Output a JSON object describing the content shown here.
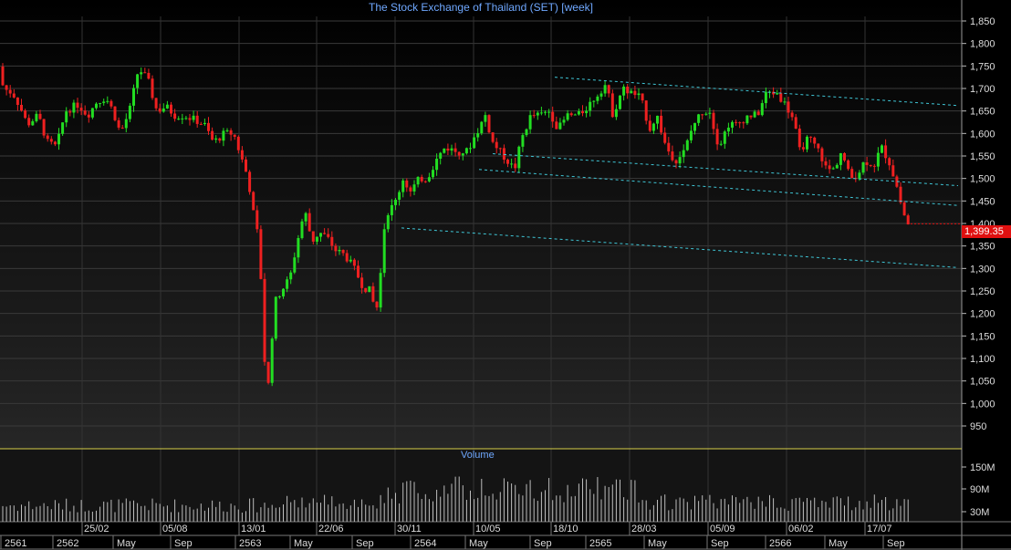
{
  "chart_data": {
    "type": "candlestick",
    "title": "The Stock Exchange of Thailand (SET) [week]",
    "volume_label": "Volume",
    "last_price_label": "1,399.35",
    "ylim": [
      920,
      1870
    ],
    "y_ticks": [
      "950",
      "1,000",
      "1,050",
      "1,100",
      "1,150",
      "1,200",
      "1,250",
      "1,300",
      "1,350",
      "1,400",
      "1,450",
      "1,500",
      "1,550",
      "1,600",
      "1,650",
      "1,700",
      "1,750",
      "1,800",
      "1,850"
    ],
    "volume_ticks": [
      "150M",
      "90M",
      "30M"
    ],
    "date_ticks": [
      "25/02",
      "05/08",
      "13/01",
      "22/06",
      "30/11",
      "10/05",
      "18/10",
      "28/03",
      "05/09",
      "06/02",
      "17/07"
    ],
    "period_ticks": [
      "2561",
      "2562",
      "May",
      "Sep",
      "2563",
      "May",
      "Sep",
      "2564",
      "May",
      "Sep",
      "2565",
      "May",
      "Sep",
      "2566",
      "May",
      "Sep"
    ],
    "price_path": [
      [
        0,
        1765
      ],
      [
        8,
        1700
      ],
      [
        18,
        1690
      ],
      [
        26,
        1660
      ],
      [
        34,
        1620
      ],
      [
        46,
        1640
      ],
      [
        56,
        1580
      ],
      [
        66,
        1570
      ],
      [
        76,
        1650
      ],
      [
        90,
        1665
      ],
      [
        100,
        1640
      ],
      [
        110,
        1670
      ],
      [
        120,
        1680
      ],
      [
        128,
        1650
      ],
      [
        136,
        1600
      ],
      [
        146,
        1650
      ],
      [
        156,
        1745
      ],
      [
        166,
        1720
      ],
      [
        176,
        1650
      ],
      [
        186,
        1660
      ],
      [
        196,
        1640
      ],
      [
        206,
        1640
      ],
      [
        218,
        1630
      ],
      [
        228,
        1620
      ],
      [
        238,
        1580
      ],
      [
        250,
        1600
      ],
      [
        260,
        1600
      ],
      [
        268,
        1550
      ],
      [
        276,
        1500
      ],
      [
        282,
        1420
      ],
      [
        286,
        1380
      ],
      [
        290,
        1280
      ],
      [
        294,
        1100
      ],
      [
        296,
        1020
      ],
      [
        300,
        1060
      ],
      [
        304,
        1220
      ],
      [
        312,
        1250
      ],
      [
        322,
        1280
      ],
      [
        330,
        1360
      ],
      [
        338,
        1430
      ],
      [
        346,
        1360
      ],
      [
        354,
        1380
      ],
      [
        362,
        1370
      ],
      [
        372,
        1340
      ],
      [
        382,
        1330
      ],
      [
        392,
        1300
      ],
      [
        402,
        1260
      ],
      [
        410,
        1250
      ],
      [
        416,
        1200
      ],
      [
        420,
        1250
      ],
      [
        424,
        1380
      ],
      [
        430,
        1430
      ],
      [
        436,
        1440
      ],
      [
        446,
        1500
      ],
      [
        454,
        1470
      ],
      [
        464,
        1500
      ],
      [
        472,
        1500
      ],
      [
        482,
        1540
      ],
      [
        492,
        1570
      ],
      [
        504,
        1560
      ],
      [
        516,
        1560
      ],
      [
        526,
        1600
      ],
      [
        536,
        1640
      ],
      [
        544,
        1580
      ],
      [
        552,
        1560
      ],
      [
        560,
        1540
      ],
      [
        568,
        1520
      ],
      [
        576,
        1590
      ],
      [
        586,
        1640
      ],
      [
        596,
        1640
      ],
      [
        606,
        1650
      ],
      [
        616,
        1610
      ],
      [
        626,
        1640
      ],
      [
        638,
        1640
      ],
      [
        648,
        1660
      ],
      [
        660,
        1690
      ],
      [
        668,
        1710
      ],
      [
        676,
        1640
      ],
      [
        686,
        1700
      ],
      [
        696,
        1690
      ],
      [
        706,
        1680
      ],
      [
        716,
        1610
      ],
      [
        724,
        1640
      ],
      [
        734,
        1570
      ],
      [
        744,
        1540
      ],
      [
        754,
        1560
      ],
      [
        764,
        1620
      ],
      [
        774,
        1650
      ],
      [
        782,
        1650
      ],
      [
        792,
        1570
      ],
      [
        802,
        1620
      ],
      [
        812,
        1620
      ],
      [
        824,
        1640
      ],
      [
        834,
        1640
      ],
      [
        844,
        1690
      ],
      [
        856,
        1690
      ],
      [
        866,
        1660
      ],
      [
        874,
        1630
      ],
      [
        880,
        1560
      ],
      [
        890,
        1590
      ],
      [
        902,
        1560
      ],
      [
        910,
        1520
      ],
      [
        918,
        1520
      ],
      [
        926,
        1560
      ],
      [
        936,
        1500
      ],
      [
        944,
        1510
      ],
      [
        952,
        1540
      ],
      [
        962,
        1530
      ],
      [
        970,
        1570
      ],
      [
        978,
        1540
      ],
      [
        986,
        1490
      ],
      [
        992,
        1440
      ],
      [
        998,
        1399
      ]
    ],
    "channel_lines": [
      {
        "from": [
          608,
          1725
        ],
        "to": [
          1050,
          1662
        ]
      },
      {
        "from": [
          540,
          1555
        ],
        "to": [
          1050,
          1484
        ]
      },
      {
        "from": [
          525,
          1520
        ],
        "to": [
          1050,
          1440
        ]
      },
      {
        "from": [
          440,
          1390
        ],
        "to": [
          1050,
          1302
        ]
      }
    ]
  }
}
